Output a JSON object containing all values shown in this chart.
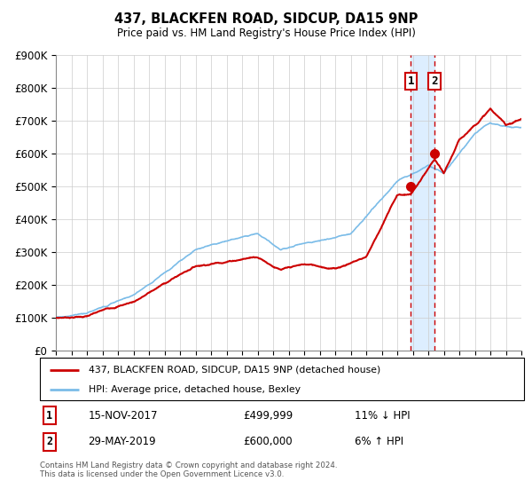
{
  "title": "437, BLACKFEN ROAD, SIDCUP, DA15 9NP",
  "subtitle": "Price paid vs. HM Land Registry's House Price Index (HPI)",
  "legend_line1": "437, BLACKFEN ROAD, SIDCUP, DA15 9NP (detached house)",
  "legend_line2": "HPI: Average price, detached house, Bexley",
  "transaction1_date": "15-NOV-2017",
  "transaction1_price": "£499,999",
  "transaction1_hpi": "11% ↓ HPI",
  "transaction2_date": "29-MAY-2019",
  "transaction2_price": "£600,000",
  "transaction2_hpi": "6% ↑ HPI",
  "footer": "Contains HM Land Registry data © Crown copyright and database right 2024.\nThis data is licensed under the Open Government Licence v3.0.",
  "hpi_color": "#7bbce8",
  "price_color": "#cc0000",
  "vline_color": "#cc0000",
  "highlight_color": "#ddeeff",
  "ylim_min": 0,
  "ylim_max": 900000,
  "yticks": [
    0,
    100000,
    200000,
    300000,
    400000,
    500000,
    600000,
    700000,
    800000,
    900000
  ],
  "year_start": 1995,
  "year_end": 2025,
  "transaction1_year": 2017.88,
  "transaction2_year": 2019.41,
  "t1_price_val": 499999,
  "t2_price_val": 600000
}
